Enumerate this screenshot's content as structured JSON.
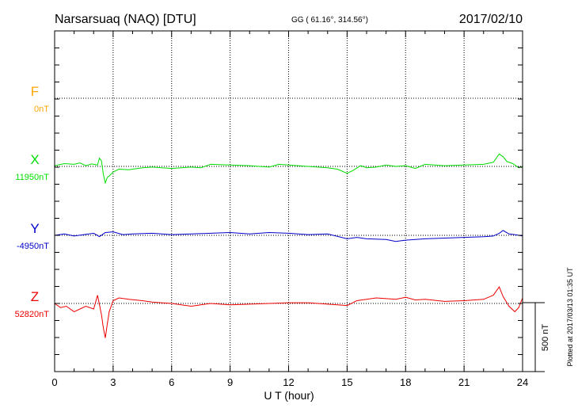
{
  "header": {
    "station": "Narsarsuaq (NAQ)  [DTU]",
    "coords": "GG ( 61.16°, 314.56°)",
    "date": "2017/02/10"
  },
  "footer": {
    "plotted": "Plotted at 2017/03/13 01:35 UT"
  },
  "scale_bar": {
    "label": "500 nT"
  },
  "colors": {
    "F": "#ffa500",
    "X": "#00dd00",
    "Y": "#0000cc",
    "Z": "#ee0000",
    "axis": "#000000",
    "grid": "#000000"
  },
  "chart_data": {
    "type": "line",
    "title": "Narsarsuaq (NAQ)  [DTU]",
    "xlabel": "U T (hour)",
    "xlim": [
      0,
      24
    ],
    "x_ticks": [
      0,
      3,
      6,
      9,
      12,
      15,
      18,
      21,
      24
    ],
    "grid": true,
    "series": [
      {
        "name": "F",
        "baseline_label": "0nT",
        "x": [],
        "values": []
      },
      {
        "name": "X",
        "baseline_label": "11950nT",
        "x": [
          0,
          0.5,
          1.0,
          1.3,
          1.6,
          1.9,
          2.2,
          2.3,
          2.4,
          2.5,
          2.6,
          2.7,
          2.8,
          3.0,
          3.3,
          3.8,
          4.5,
          5.0,
          6.0,
          7.0,
          7.5,
          8.0,
          9.0,
          10.0,
          11.0,
          11.5,
          12.0,
          13.0,
          14.0,
          14.5,
          15.0,
          15.3,
          15.7,
          16.0,
          16.5,
          17.0,
          17.5,
          18.0,
          18.5,
          19.0,
          19.5,
          20.0,
          21.0,
          22.0,
          22.5,
          22.8,
          23.0,
          23.2,
          23.5,
          23.8,
          24.0
        ],
        "values": [
          5,
          20,
          15,
          25,
          5,
          18,
          10,
          60,
          40,
          -60,
          -120,
          -80,
          -70,
          -40,
          -20,
          -25,
          -10,
          -5,
          -15,
          -5,
          -10,
          15,
          10,
          5,
          -5,
          15,
          10,
          0,
          -10,
          -20,
          -50,
          -30,
          5,
          -10,
          -5,
          10,
          0,
          5,
          -15,
          15,
          10,
          5,
          10,
          15,
          30,
          90,
          70,
          35,
          20,
          -10,
          0
        ]
      },
      {
        "name": "Y",
        "baseline_label": "-4950nT",
        "x": [
          0,
          0.5,
          1.0,
          1.5,
          2.0,
          2.3,
          2.6,
          3.0,
          3.5,
          4.0,
          5.0,
          6.0,
          7.0,
          8.0,
          9.0,
          10.0,
          11.0,
          12.0,
          13.0,
          14.0,
          15.0,
          15.5,
          16.0,
          17.0,
          17.5,
          18.0,
          19.0,
          20.0,
          21.0,
          22.0,
          22.5,
          22.8,
          23.0,
          23.3,
          23.6,
          24.0
        ],
        "values": [
          0,
          10,
          -5,
          5,
          15,
          -10,
          20,
          25,
          5,
          10,
          15,
          5,
          10,
          15,
          20,
          10,
          20,
          15,
          5,
          10,
          -25,
          -15,
          -25,
          -30,
          -45,
          -35,
          -25,
          -20,
          -15,
          -10,
          -5,
          15,
          35,
          10,
          5,
          -5
        ]
      },
      {
        "name": "Z",
        "baseline_label": "52820nT",
        "x": [
          0,
          0.3,
          0.6,
          1.0,
          1.3,
          1.6,
          2.0,
          2.2,
          2.4,
          2.5,
          2.6,
          2.7,
          2.8,
          3.0,
          3.3,
          3.8,
          4.5,
          5.0,
          6.0,
          7.0,
          7.5,
          8.0,
          9.0,
          10.0,
          11.0,
          12.0,
          13.0,
          14.0,
          15.0,
          15.5,
          16.0,
          16.5,
          17.0,
          17.5,
          18.0,
          18.5,
          19.0,
          20.0,
          21.0,
          22.0,
          22.5,
          22.8,
          23.0,
          23.3,
          23.6,
          23.8,
          24.0
        ],
        "values": [
          0,
          -30,
          -20,
          -60,
          -40,
          -20,
          -40,
          60,
          -80,
          -180,
          -250,
          -150,
          -60,
          20,
          40,
          30,
          20,
          10,
          0,
          -20,
          -10,
          0,
          -10,
          -5,
          0,
          5,
          5,
          -5,
          -15,
          20,
          30,
          40,
          35,
          30,
          45,
          25,
          30,
          15,
          20,
          30,
          60,
          120,
          50,
          -20,
          -60,
          -30,
          40
        ]
      }
    ]
  }
}
